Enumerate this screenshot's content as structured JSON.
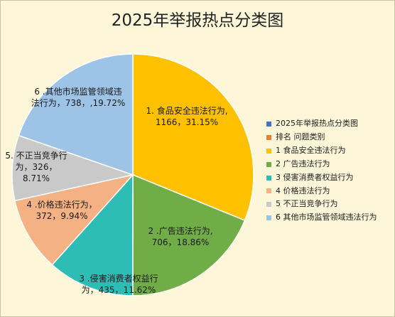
{
  "title": "2025年举报热点分类图",
  "legend": [
    {
      "label": "2025年举报热点分类图",
      "color": "#4472c4"
    },
    {
      "label": "排名 问题类别",
      "color": "#ed7d31"
    },
    {
      "label": "1 食品安全违法行为",
      "color": "#ffc000"
    },
    {
      "label": "2 广告违法行为",
      "color": "#70ad47"
    },
    {
      "label": "3 侵害消费者权益行为",
      "color": "#2ebdb4"
    },
    {
      "label": "4 价格违法行为",
      "color": "#f4b183"
    },
    {
      "label": "5 不正当竞争行为",
      "color": "#c9c9c9"
    },
    {
      "label": "6 其他市场监管领域违法行为",
      "color": "#9dc3e6"
    }
  ],
  "chart_data": {
    "type": "pie",
    "title": "2025年举报热点分类图",
    "categories": [
      "1 食品安全违法行为",
      "2 广告违法行为",
      "3 侵害消费者权益行为",
      "4 价格违法行为",
      "5 不正当竞争行为",
      "6 其他市场监管领域违法行为"
    ],
    "values": [
      1166,
      706,
      435,
      372,
      326,
      738
    ],
    "percentages": [
      "31.15%",
      "18.86%",
      "11.62%",
      "9.94%",
      "8.71%",
      "19.72%"
    ],
    "colors": [
      "#ffc000",
      "#70ad47",
      "#2ebdb4",
      "#f4b183",
      "#c9c9c9",
      "#9dc3e6"
    ],
    "data_labels": [
      [
        "1. 食品安全违法行为,",
        "1166，31.15%"
      ],
      [
        "2 .广告违法行为,",
        "706，18.86%"
      ],
      [
        "3 .侵害消费者权益行",
        "为，435，11.62%"
      ],
      [
        "4 .价格违法行为，",
        "372，9.94%"
      ],
      [
        "5. 不正当竞争行",
        "为，326，",
        "8.71%"
      ],
      [
        "6 .其他市场监管领域违",
        "法行为，738，,19.72%"
      ]
    ],
    "legend_position": "right"
  }
}
